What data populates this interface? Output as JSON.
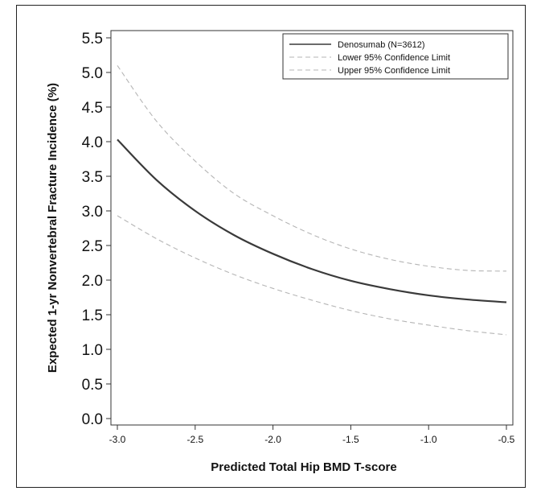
{
  "chart_data": {
    "type": "line",
    "title": "",
    "xlabel": "Predicted Total Hip BMD T-score",
    "ylabel": "Expected 1-yr Nonvertebral Fracture Incidence (%)",
    "xlim": [
      -3.0,
      -0.5
    ],
    "ylim": [
      0.0,
      5.5
    ],
    "x_ticks": [
      "-3.0",
      "-2.5",
      "-2.0",
      "-1.5",
      "-1.0",
      "-0.5"
    ],
    "y_ticks": [
      "0.0",
      "0.5",
      "1.0",
      "1.5",
      "2.0",
      "2.5",
      "3.0",
      "3.5",
      "4.0",
      "4.5",
      "5.0",
      "5.5"
    ],
    "grid": false,
    "legend_position": "top-right",
    "x": [
      -3.0,
      -2.75,
      -2.5,
      -2.25,
      -2.0,
      -1.75,
      -1.5,
      -1.25,
      -1.0,
      -0.75,
      -0.5
    ],
    "series": [
      {
        "name": "Denosumab (N=3612)",
        "color": "#3a3a3a",
        "style": "solid",
        "values": [
          4.03,
          3.45,
          3.0,
          2.65,
          2.38,
          2.16,
          1.99,
          1.87,
          1.78,
          1.72,
          1.68
        ]
      },
      {
        "name": "Lower 95% Confidence Limit",
        "color": "#b5b5b5",
        "style": "dashed",
        "values": [
          2.93,
          2.6,
          2.32,
          2.08,
          1.88,
          1.71,
          1.56,
          1.44,
          1.35,
          1.27,
          1.21
        ]
      },
      {
        "name": "Upper 95% Confidence Limit",
        "color": "#b5b5b5",
        "style": "dashed",
        "values": [
          5.1,
          4.3,
          3.72,
          3.25,
          2.93,
          2.66,
          2.45,
          2.3,
          2.2,
          2.14,
          2.13
        ]
      }
    ]
  }
}
